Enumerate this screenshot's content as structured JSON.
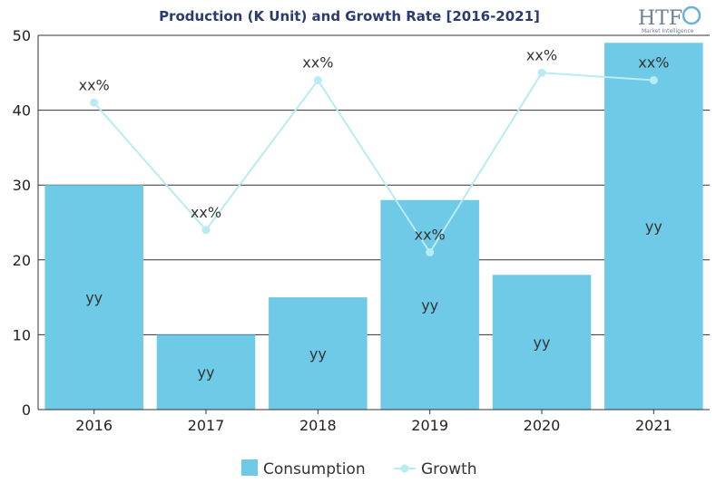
{
  "logo": {
    "text": "HTF",
    "subtitle": "Market Intelligence"
  },
  "chart_data": {
    "type": "bar",
    "title": "Production (K Unit) and Growth Rate [2016-2021]",
    "xlabel": "",
    "ylabel": "",
    "categories": [
      "2016",
      "2017",
      "2018",
      "2019",
      "2020",
      "2021"
    ],
    "ylim": [
      0,
      50
    ],
    "yticks": [
      0,
      10,
      20,
      30,
      40,
      50
    ],
    "grid": true,
    "legend_position": "bottom",
    "series": [
      {
        "name": "Consumption",
        "type": "bar",
        "color": "#6ecae6",
        "values": [
          30,
          10,
          15,
          28,
          18,
          49
        ],
        "labels": [
          "yy",
          "yy",
          "yy",
          "yy",
          "yy",
          "yy"
        ]
      },
      {
        "name": "Growth",
        "type": "line",
        "color": "#b8ecf2",
        "values": [
          41,
          24,
          44,
          21,
          45,
          44
        ],
        "labels": [
          "xx%",
          "xx%",
          "xx%",
          "xx%",
          "xx%",
          "xx%"
        ]
      }
    ]
  }
}
